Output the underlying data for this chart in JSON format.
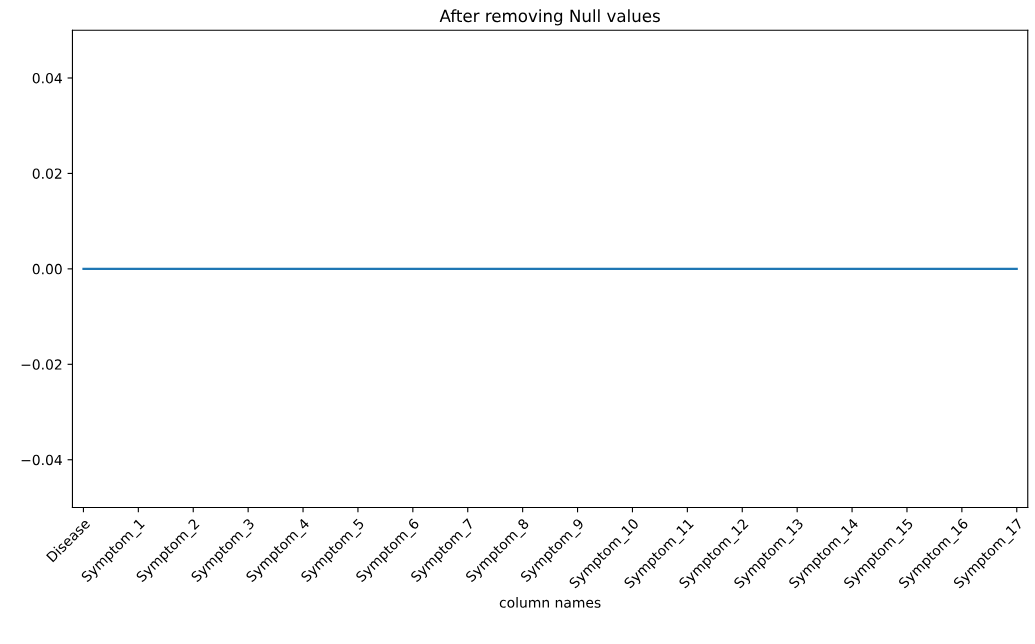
{
  "chart_data": {
    "type": "line",
    "title": "After removing Null values",
    "xlabel": "column names",
    "categories": [
      "Disease",
      "Symptom_1",
      "Symptom_2",
      "Symptom_3",
      "Symptom_4",
      "Symptom_5",
      "Symptom_6",
      "Symptom_7",
      "Symptom_8",
      "Symptom_9",
      "Symptom_10",
      "Symptom_11",
      "Symptom_12",
      "Symptom_13",
      "Symptom_14",
      "Symptom_15",
      "Symptom_16",
      "Symptom_17"
    ],
    "values": [
      0,
      0,
      0,
      0,
      0,
      0,
      0,
      0,
      0,
      0,
      0,
      0,
      0,
      0,
      0,
      0,
      0,
      0
    ],
    "color": "#1f77b4",
    "ylim": [
      -0.05,
      0.05
    ],
    "yticks": [
      {
        "value": -0.04,
        "label": "−0.04"
      },
      {
        "value": -0.02,
        "label": "−0.02"
      },
      {
        "value": 0,
        "label": "0.00"
      },
      {
        "value": 0.02,
        "label": "0.02"
      },
      {
        "value": 0.04,
        "label": "0.04"
      }
    ],
    "grid": false
  }
}
